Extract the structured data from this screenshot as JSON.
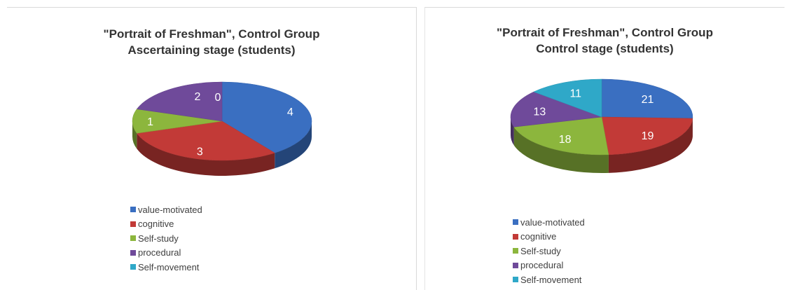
{
  "chart_data": [
    {
      "type": "pie",
      "title_lines": [
        "\"Portrait of Freshman\", Control Group",
        "Ascertaining stage (students)"
      ],
      "categories": [
        "value-motivated",
        "cognitive",
        "Self-study",
        "procedural",
        "Self-movement"
      ],
      "values": [
        4,
        3,
        1,
        2,
        0
      ],
      "colors": [
        "#3a6fc1",
        "#c23a37",
        "#8cb63d",
        "#6f4a9a",
        "#2fa8c8"
      ],
      "legend_position": "bottom"
    },
    {
      "type": "pie",
      "title_lines": [
        "\"Portrait of Freshman\", Control Group",
        "Control stage (students)"
      ],
      "categories": [
        "value-motivated",
        "cognitive",
        "Self-study",
        "procedural",
        "Self-movement"
      ],
      "values": [
        21,
        19,
        18,
        13,
        11
      ],
      "colors": [
        "#3a6fc1",
        "#c23a37",
        "#8cb63d",
        "#6f4a9a",
        "#2fa8c8"
      ],
      "legend_position": "bottom"
    }
  ]
}
